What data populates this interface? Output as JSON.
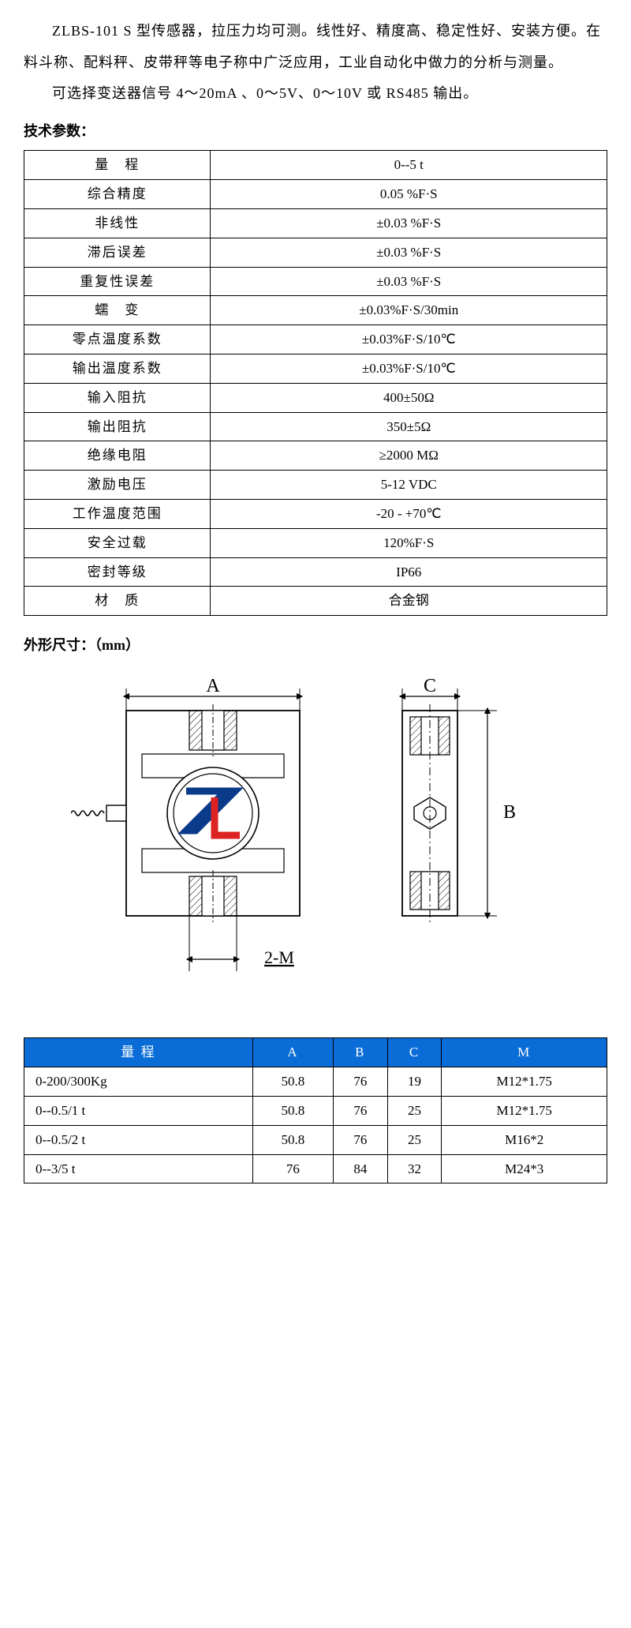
{
  "intro": {
    "p1": "ZLBS-101 S 型传感器，拉压力均可测。线性好、精度高、稳定性好、安装方便。在料斗称、配料秤、皮带秤等电子称中广泛应用，工业自动化中做力的分析与测量。",
    "p2": "可选择变送器信号 4～20mA 、0～5V、0～10V 或 RS485 输出。"
  },
  "spec": {
    "title": "技术参数：",
    "rows": [
      {
        "label": "量　程",
        "value": "0--5 t"
      },
      {
        "label": "综合精度",
        "value": "0.05 %F·S"
      },
      {
        "label": "非线性",
        "value": "±0.03 %F·S"
      },
      {
        "label": "滞后误差",
        "value": "±0.03 %F·S"
      },
      {
        "label": "重复性误差",
        "value": "±0.03 %F·S"
      },
      {
        "label": "蠕　变",
        "value": "±0.03%F·S/30min"
      },
      {
        "label": "零点温度系数",
        "value": "±0.03%F·S/10℃"
      },
      {
        "label": "输出温度系数",
        "value": "±0.03%F·S/10℃"
      },
      {
        "label": "输入阻抗",
        "value": "400±50Ω"
      },
      {
        "label": "输出阻抗",
        "value": "350±5Ω"
      },
      {
        "label": "绝缘电阻",
        "value": "≥2000 MΩ"
      },
      {
        "label": "激励电压",
        "value": "5-12 VDC"
      },
      {
        "label": "工作温度范围",
        "value": "-20 - +70℃"
      },
      {
        "label": "安全过载",
        "value": "120%F·S"
      },
      {
        "label": "密封等级",
        "value": "IP66"
      },
      {
        "label": "材　质",
        "value": "合金钢"
      }
    ]
  },
  "dimensions": {
    "title": "外形尺寸：（mm）",
    "drawing": {
      "label_A": "A",
      "label_B": "B",
      "label_C": "C",
      "label_2M": "2-M",
      "logo_stroke_blue": "#0a3a8a",
      "logo_stroke_red": "#d22",
      "line_color": "#000000",
      "line_width": 1.6
    },
    "columns": [
      "量 程",
      "A",
      "B",
      "C",
      "M"
    ],
    "header_bg": "#0a6cd6",
    "header_fg": "#ffffff",
    "rows": [
      {
        "range": "0-200/300Kg",
        "A": "50.8",
        "B": "76",
        "C": "19",
        "M": "M12*1.75"
      },
      {
        "range": "0--0.5/1 t",
        "A": "50.8",
        "B": "76",
        "C": "25",
        "M": "M12*1.75"
      },
      {
        "range": "0--0.5/2 t",
        "A": "50.8",
        "B": "76",
        "C": "25",
        "M": "M16*2"
      },
      {
        "range": "0--3/5 t",
        "A": "76",
        "B": "84",
        "C": "32",
        "M": "M24*3"
      }
    ]
  }
}
